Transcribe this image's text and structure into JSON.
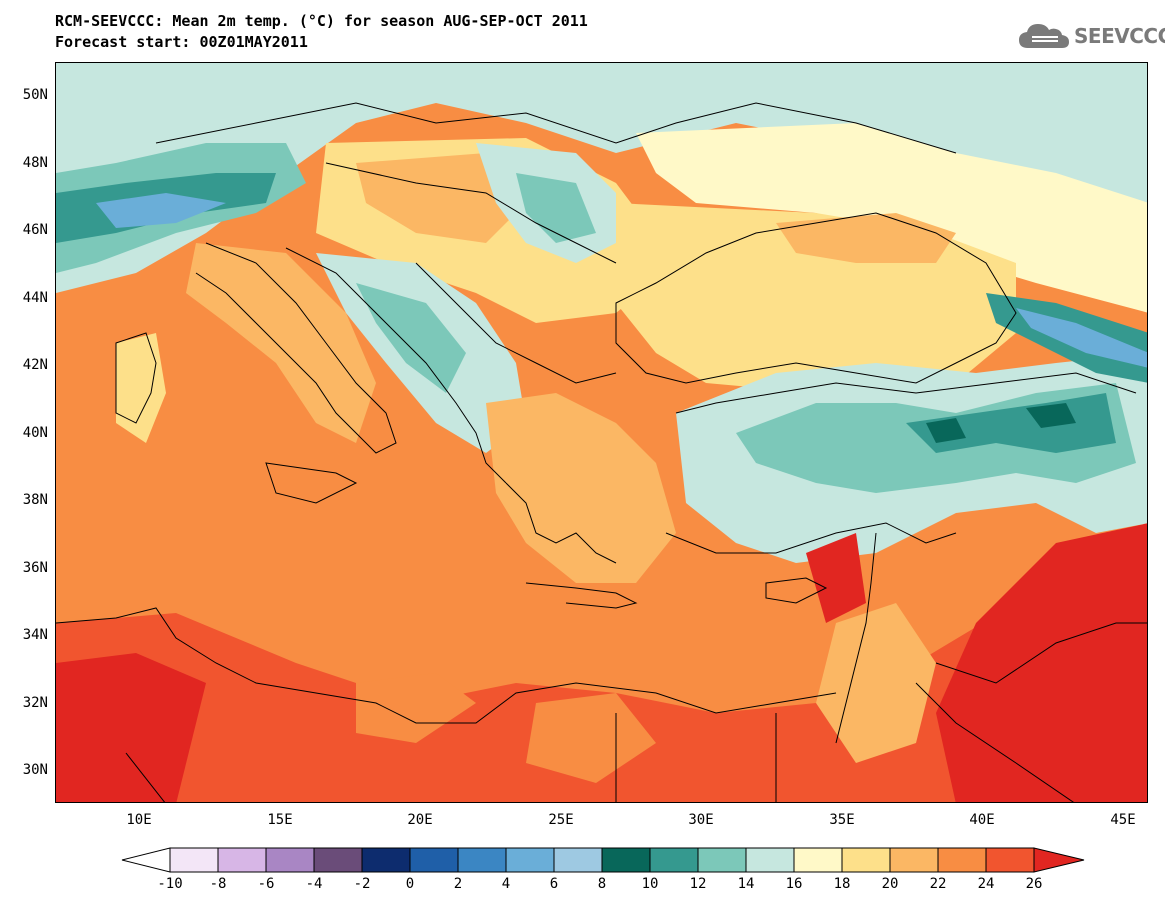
{
  "title_line1": "RCM-SEEVCCC: Mean 2m temp. (°C) for season AUG-SEP-OCT 2011",
  "title_line2": "Forecast start: 00Z01MAY2011",
  "logo_text": "SEEVCCC",
  "map": {
    "lat_labels": [
      "50N",
      "48N",
      "46N",
      "44N",
      "42N",
      "40N",
      "38N",
      "36N",
      "34N",
      "32N",
      "30N"
    ],
    "lon_labels": [
      "10E",
      "15E",
      "20E",
      "25E",
      "30E",
      "35E",
      "40E",
      "45E"
    ]
  },
  "colorbar": {
    "labels": [
      "-10",
      "-8",
      "-6",
      "-4",
      "-2",
      "0",
      "2",
      "4",
      "6",
      "8",
      "10",
      "12",
      "14",
      "16",
      "18",
      "20",
      "22",
      "24",
      "26"
    ],
    "under_color": "#ffffff",
    "colors": [
      "#f3e6f7",
      "#d7b6e6",
      "#a986c4",
      "#6a4c79",
      "#0d2c6e",
      "#1f5fa8",
      "#3b86c3",
      "#6aaed8",
      "#9ec9e2",
      "#08675a",
      "#35998f",
      "#7cc8b9",
      "#c6e7df",
      "#fff9c8",
      "#fde08a",
      "#fbb764",
      "#f88d43",
      "#f1552f"
    ],
    "over_color": "#e12621"
  }
}
